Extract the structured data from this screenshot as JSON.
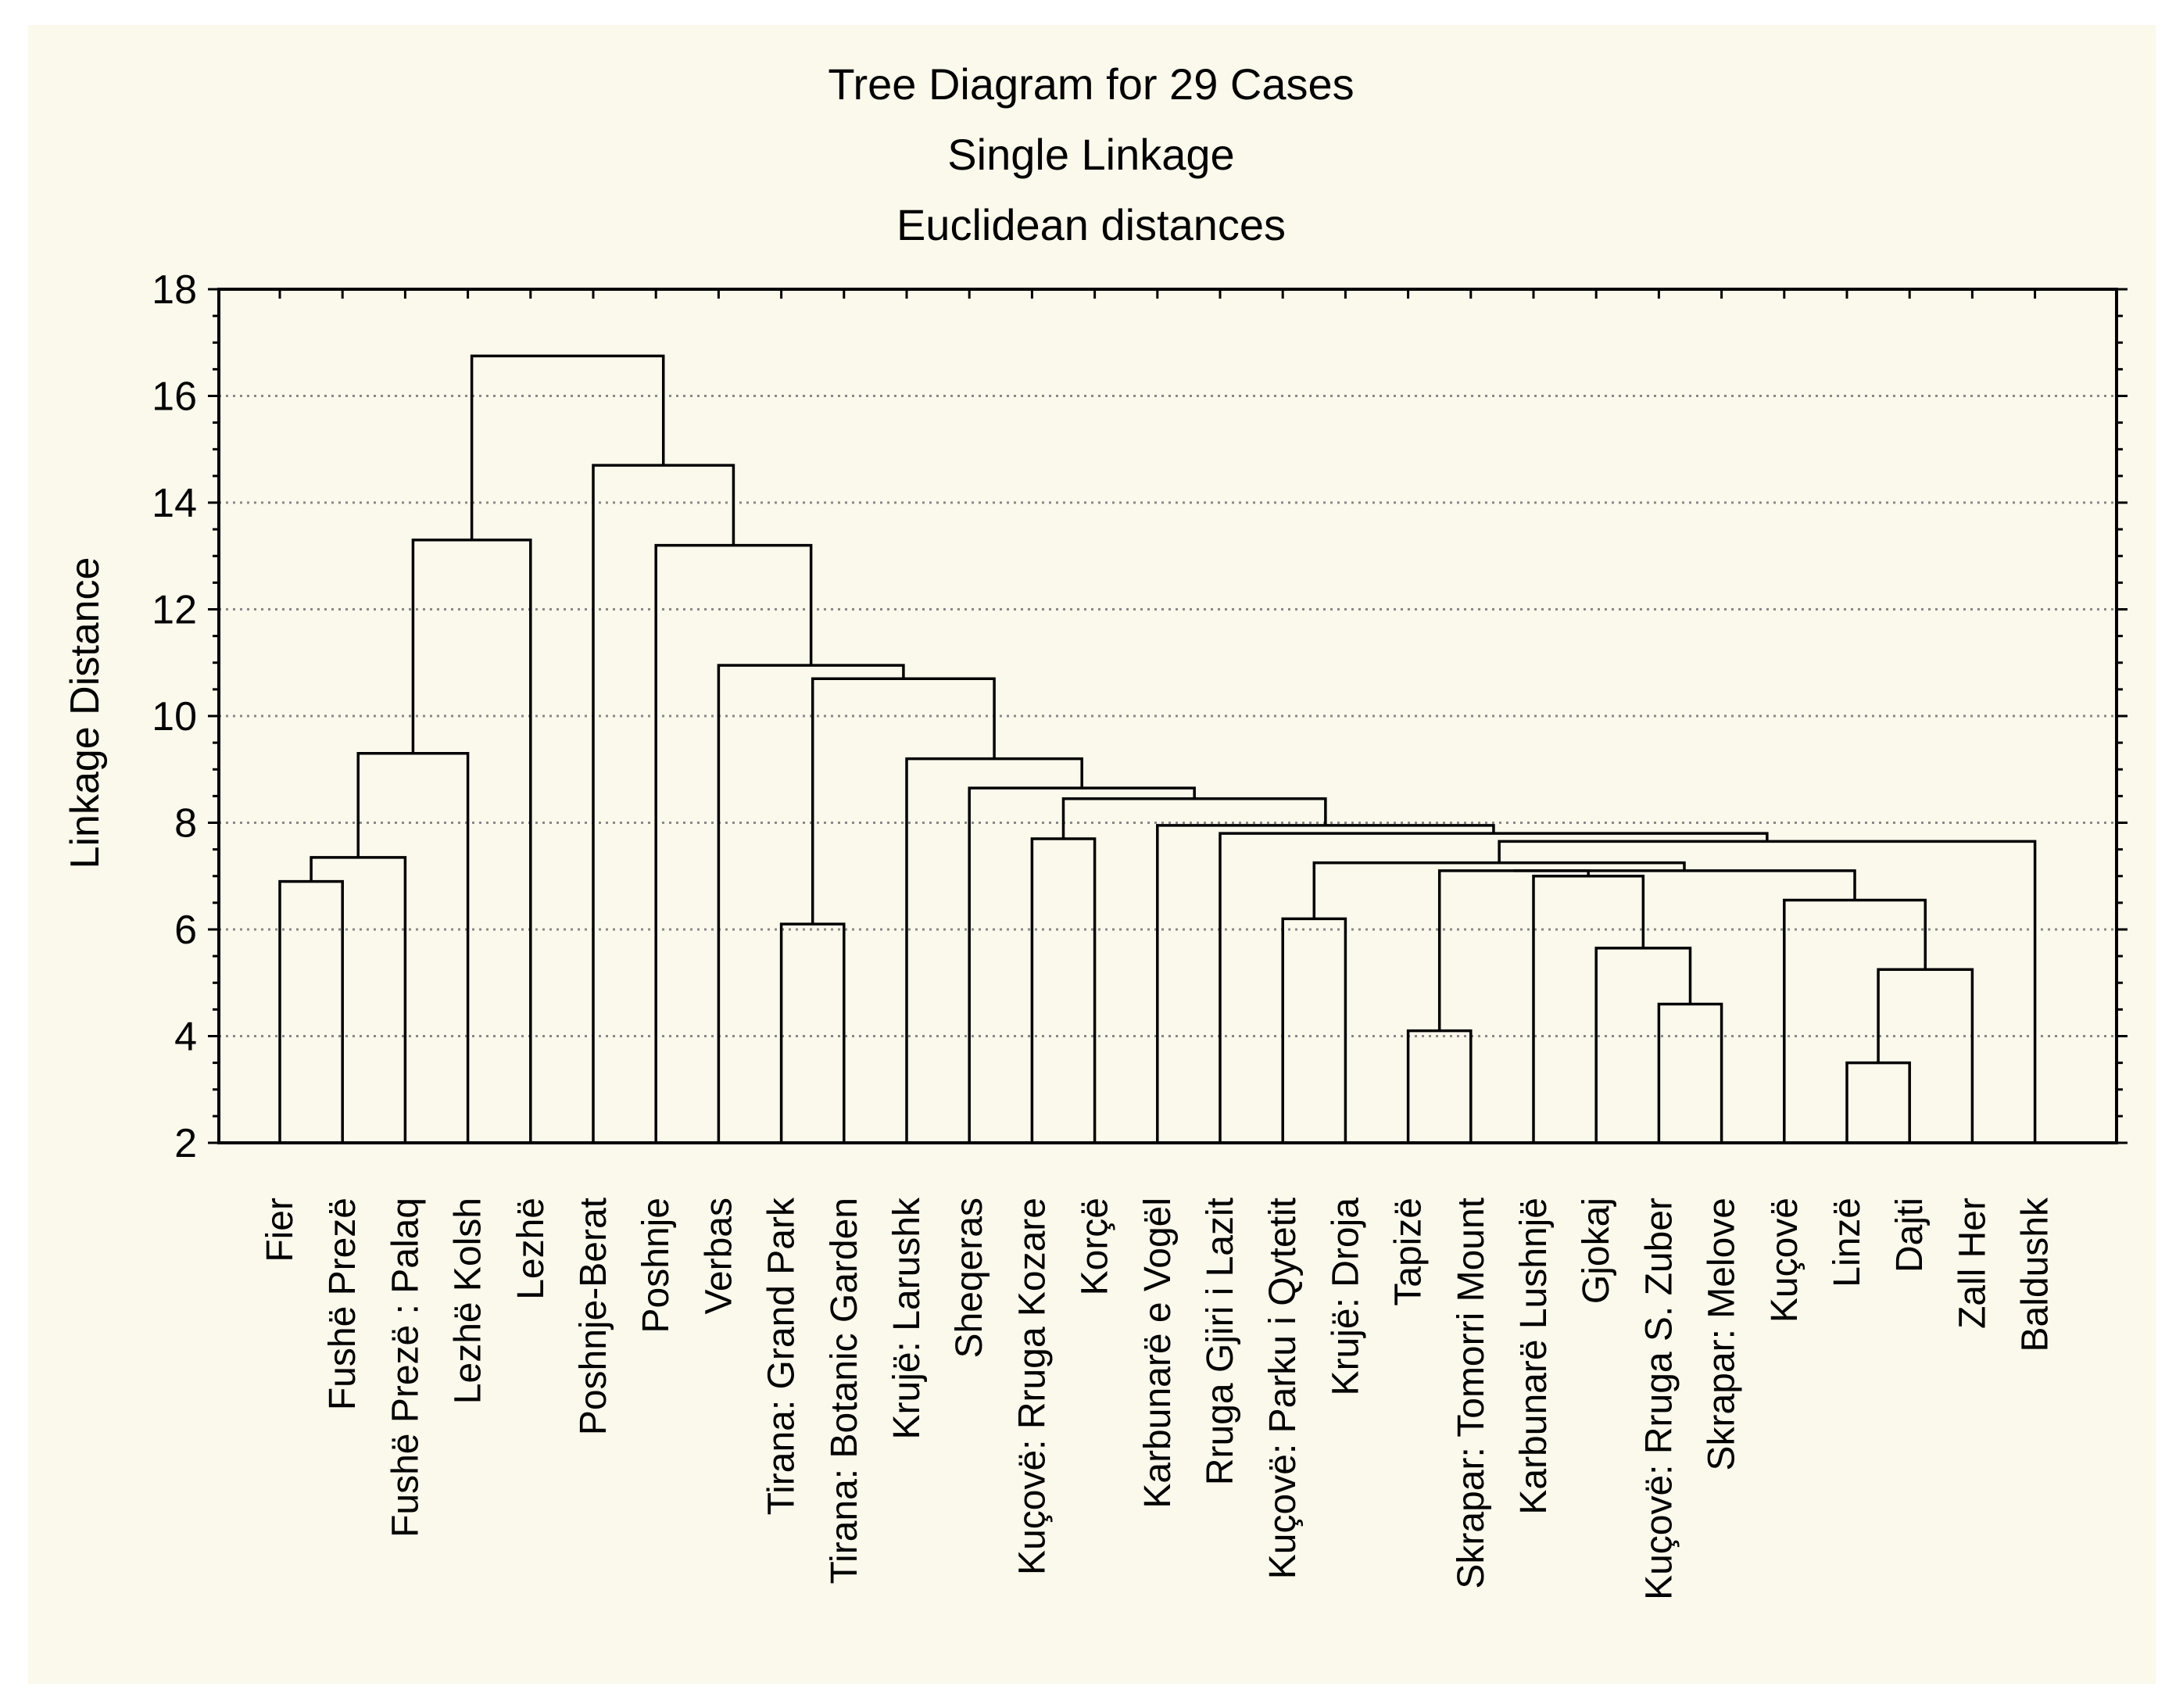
{
  "chart_data": {
    "type": "dendrogram",
    "title": "Tree Diagram for 29 Cases",
    "subtitle_1": "Single Linkage",
    "subtitle_2": "Euclidean distances",
    "ylabel": "Linkage Distance",
    "ylim": [
      2,
      18
    ],
    "yticks": [
      "2",
      "4",
      "6",
      "8",
      "10",
      "12",
      "14",
      "16",
      "18"
    ],
    "grid": true,
    "leaves": [
      "Fier",
      "Fushë Prezë",
      "Fushë Prezë : Palaq",
      "Lezhë Kolsh",
      "Lezhë",
      "Poshnje-Berat",
      "Poshnje",
      "Verbas",
      "Tirana: Grand Park",
      "Tirana: Botanic Garden",
      "Krujë: Larushk",
      "Sheqeras",
      "Kuçovë: Rruga Kozare",
      "Korçë",
      "Karbunarë e Vogël",
      "Rruga Gjiri i Lazit",
      "Kuçovë: Parku i Qytetit",
      "Krujë: Droja",
      "Tapizë",
      "Skrapar: Tomorri Mount",
      "Karbunarë Lushnjë",
      "Gjokaj",
      "Kuçovë: Rruga S. Zuber",
      "Skrapar: Melove",
      "Kuçovë",
      "Linzë",
      "Dajti",
      "Zall Her",
      "Baldushk"
    ],
    "merges": [
      {
        "a": 0,
        "b": 1,
        "d": 6.9
      },
      {
        "a": 29,
        "b": 2,
        "d": 7.35
      },
      {
        "a": 30,
        "b": 3,
        "d": 9.3
      },
      {
        "a": 31,
        "b": 4,
        "d": 13.3
      },
      {
        "a": 8,
        "b": 9,
        "d": 6.1
      },
      {
        "a": 12,
        "b": 13,
        "d": 7.7
      },
      {
        "a": 16,
        "b": 17,
        "d": 6.2
      },
      {
        "a": 18,
        "b": 19,
        "d": 4.1
      },
      {
        "a": 22,
        "b": 23,
        "d": 4.6
      },
      {
        "a": 21,
        "b": 37,
        "d": 5.65
      },
      {
        "a": 20,
        "b": 38,
        "d": 7.0
      },
      {
        "a": 36,
        "b": 39,
        "d": 7.1
      },
      {
        "a": 25,
        "b": 26,
        "d": 3.5
      },
      {
        "a": 41,
        "b": 27,
        "d": 5.25
      },
      {
        "a": 24,
        "b": 42,
        "d": 6.55
      },
      {
        "a": 40,
        "b": 43,
        "d": 7.1
      },
      {
        "a": 35,
        "b": 44,
        "d": 7.25
      },
      {
        "a": 45,
        "b": 28,
        "d": 7.65
      },
      {
        "a": 15,
        "b": 46,
        "d": 7.8
      },
      {
        "a": 14,
        "b": 47,
        "d": 7.95
      },
      {
        "a": 34,
        "b": 48,
        "d": 8.45
      },
      {
        "a": 11,
        "b": 49,
        "d": 8.65
      },
      {
        "a": 10,
        "b": 50,
        "d": 9.2
      },
      {
        "a": 33,
        "b": 51,
        "d": 10.7
      },
      {
        "a": 7,
        "b": 52,
        "d": 10.95
      },
      {
        "a": 6,
        "b": 53,
        "d": 13.2
      },
      {
        "a": 5,
        "b": 54,
        "d": 14.7
      },
      {
        "a": 32,
        "b": 55,
        "d": 16.75
      }
    ]
  }
}
